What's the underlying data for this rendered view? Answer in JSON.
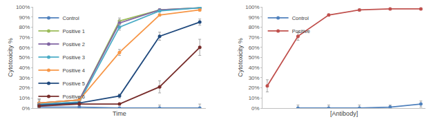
{
  "chart_data": [
    {
      "type": "line",
      "x_label": "Time",
      "y_label": "Cytotoxicity %",
      "categories": [
        null,
        null,
        null,
        null,
        null
      ],
      "ylim": [
        0,
        100
      ],
      "yticks": [
        {
          "value": 0,
          "label": "0%"
        },
        {
          "value": 10,
          "label": "10%"
        },
        {
          "value": 20,
          "label": "20%"
        },
        {
          "value": 30,
          "label": "30%"
        },
        {
          "value": 40,
          "label": "40%"
        },
        {
          "value": 50,
          "label": "50%"
        },
        {
          "value": 60,
          "label": "60%"
        },
        {
          "value": 70,
          "label": "70%"
        },
        {
          "value": 80,
          "label": "80%"
        },
        {
          "value": 90,
          "label": "90%"
        },
        {
          "value": 100,
          "label": "100%"
        }
      ],
      "grid": false,
      "legend": "upper left",
      "tick_labels": "y",
      "marker": "circle",
      "line_style": "solid",
      "series": [
        {
          "name": "Control",
          "color": "#4F81BD",
          "values": [
            1,
            1,
            0,
            0,
            0
          ],
          "errors": [
            2,
            1,
            1,
            3,
            4
          ]
        },
        {
          "name": "Positive 1",
          "color": "#9BBB59",
          "values": [
            5,
            8,
            86,
            97,
            99
          ],
          "errors": [
            4,
            2,
            3,
            1,
            1
          ]
        },
        {
          "name": "Positive 2",
          "color": "#8064A2",
          "values": [
            5,
            8,
            84,
            97,
            99
          ],
          "errors": [
            4,
            2,
            3,
            1,
            1
          ]
        },
        {
          "name": "Positive 3",
          "color": "#4BACC6",
          "values": [
            4,
            6,
            80,
            96,
            99
          ],
          "errors": [
            4,
            2,
            3,
            1,
            1
          ]
        },
        {
          "name": "Positive 4",
          "color": "#F79646",
          "values": [
            5,
            8,
            55,
            92,
            97
          ],
          "errors": [
            4,
            2,
            3,
            1,
            1
          ]
        },
        {
          "name": "Positive 5",
          "color": "#1F497D",
          "values": [
            3,
            5,
            12,
            71,
            85
          ],
          "errors": [
            2,
            2,
            2,
            4,
            3
          ]
        },
        {
          "name": "Positive 6",
          "color": "#772C2A",
          "values": [
            2,
            4,
            4,
            21,
            60
          ],
          "errors": [
            2,
            1,
            1,
            6,
            8
          ]
        }
      ]
    },
    {
      "type": "line",
      "x_label": "[Antibody]",
      "y_label": "Cytotoxicity %",
      "categories": [
        null,
        null,
        null,
        null,
        null,
        null
      ],
      "ylim": [
        0,
        100
      ],
      "yticks": [
        {
          "value": 0,
          "label": "0%"
        },
        {
          "value": 10,
          "label": "10%"
        },
        {
          "value": 20,
          "label": "20%"
        },
        {
          "value": 30,
          "label": "30%"
        },
        {
          "value": 40,
          "label": "40%"
        },
        {
          "value": 50,
          "label": "50%"
        },
        {
          "value": 60,
          "label": "60%"
        },
        {
          "value": 70,
          "label": "70%"
        },
        {
          "value": 80,
          "label": "80%"
        },
        {
          "value": 90,
          "label": "90%"
        },
        {
          "value": 100,
          "label": "100%"
        }
      ],
      "grid": false,
      "legend": "upper left",
      "tick_labels": "y",
      "marker": "circle",
      "line_style": "solid",
      "series": [
        {
          "name": "Control",
          "color": "#4F81BD",
          "values": [
            null,
            0,
            0,
            0,
            1,
            4
          ],
          "errors": [
            null,
            3,
            3,
            3,
            2,
            3
          ]
        },
        {
          "name": "Positive",
          "color": "#C0504D",
          "values": [
            22,
            71,
            92,
            97,
            98,
            98
          ],
          "errors": [
            6,
            4,
            1,
            1,
            1,
            1
          ]
        }
      ]
    }
  ]
}
